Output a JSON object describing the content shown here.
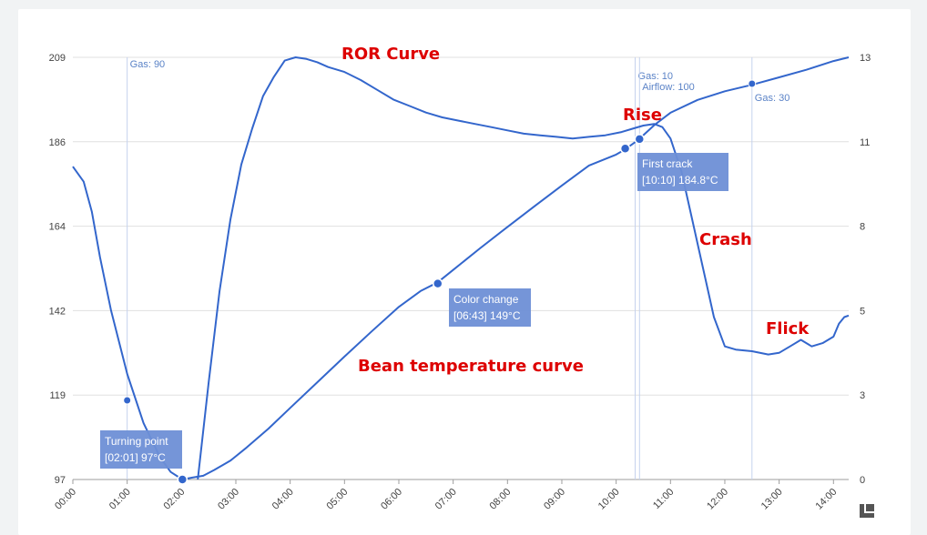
{
  "chart_data": {
    "type": "line",
    "x_tick_labels": [
      "00:00",
      "01:00",
      "02:00",
      "03:00",
      "04:00",
      "05:00",
      "06:00",
      "07:00",
      "08:00",
      "09:00",
      "10:00",
      "11:00",
      "12:00",
      "13:00",
      "14:00"
    ],
    "xlim_minutes": [
      0,
      14.28
    ],
    "y_left_ticks": [
      "209",
      "186",
      "164",
      "142",
      "119",
      "97"
    ],
    "ylim_left": [
      97,
      209
    ],
    "y_right_ticks": [
      "13",
      "11",
      "8",
      "5",
      "3",
      "0"
    ],
    "ylim_right": [
      0,
      13
    ],
    "series": [
      {
        "name": "Bean temperature curve",
        "axis": "left",
        "color": "#3366cc",
        "x": [
          0,
          0.2,
          0.35,
          0.5,
          0.7,
          1.0,
          1.3,
          1.6,
          1.8,
          2.0167,
          2.2,
          2.4,
          2.6,
          2.9,
          3.2,
          3.6,
          4.0,
          4.5,
          5.0,
          5.5,
          6.0,
          6.4,
          6.7167,
          7.0,
          7.5,
          8.0,
          8.5,
          9.0,
          9.5,
          10.0,
          10.1667,
          10.4,
          10.7,
          11.0,
          11.5,
          12.0,
          12.5,
          13.0,
          13.5,
          14.0,
          14.28
        ],
        "y": [
          180,
          176,
          168,
          156,
          142,
          125,
          112,
          103,
          99,
          97,
          97.5,
          98,
          99.5,
          102,
          105.5,
          110.5,
          116,
          122.8,
          129.6,
          136.3,
          142.8,
          147,
          149.3,
          152.6,
          158.4,
          164,
          169.5,
          175,
          180.3,
          183.2,
          184.6,
          187,
          191,
          194.3,
          197.7,
          200,
          201.7,
          203.7,
          205.7,
          208,
          209
        ]
      },
      {
        "name": "ROR Curve",
        "axis": "right",
        "color": "#3366cc",
        "x": [
          2.3,
          2.5,
          2.7,
          2.9,
          3.1,
          3.3,
          3.5,
          3.7,
          3.9,
          4.1,
          4.3,
          4.5,
          4.7,
          5.0,
          5.3,
          5.6,
          5.9,
          6.2,
          6.5,
          6.8,
          7.1,
          7.4,
          7.7,
          8.0,
          8.3,
          8.6,
          8.9,
          9.2,
          9.5,
          9.8,
          10.1,
          10.3,
          10.5,
          10.7,
          10.85,
          11.0,
          11.2,
          11.4,
          11.6,
          11.8,
          12.0,
          12.2,
          12.5,
          12.8,
          13.0,
          13.2,
          13.4,
          13.6,
          13.8,
          14.0,
          14.1,
          14.2,
          14.28
        ],
        "y": [
          0,
          3,
          5.8,
          8,
          9.7,
          10.8,
          11.8,
          12.4,
          12.9,
          13.0,
          12.95,
          12.85,
          12.7,
          12.55,
          12.3,
          12.0,
          11.7,
          11.5,
          11.3,
          11.15,
          11.05,
          10.95,
          10.85,
          10.75,
          10.65,
          10.6,
          10.55,
          10.5,
          10.55,
          10.6,
          10.7,
          10.8,
          10.9,
          10.95,
          10.85,
          10.5,
          9.5,
          8.0,
          6.5,
          5.0,
          4.1,
          4.0,
          3.95,
          3.85,
          3.9,
          4.1,
          4.3,
          4.1,
          4.2,
          4.4,
          4.8,
          5.0,
          5.05
        ]
      }
    ],
    "markers": [
      {
        "name": "turning-point",
        "x": 2.0167,
        "y": 97,
        "axis": "left"
      },
      {
        "name": "color-change",
        "x": 6.7167,
        "y": 149,
        "axis": "left"
      },
      {
        "name": "first-crack",
        "x": 10.1667,
        "y": 184.8,
        "axis": "left"
      },
      {
        "name": "first-crack-2",
        "x": 10.43,
        "y": 187.3,
        "axis": "left"
      },
      {
        "name": "gas-90-point",
        "x": 1.0,
        "y": 118,
        "axis": "left"
      },
      {
        "name": "gas-30-point",
        "x": 12.5,
        "y": 202,
        "axis": "left"
      }
    ],
    "event_lines": [
      {
        "name": "gas-90",
        "x": 1.0,
        "label": "Gas: 90",
        "label_pos": "top-right"
      },
      {
        "name": "gas-10",
        "x": 10.35,
        "label": "Gas: 10",
        "label_pos": "top-right"
      },
      {
        "name": "airflow-100",
        "x": 10.43,
        "label": "Airflow: 100",
        "label_pos": "top-right"
      },
      {
        "name": "gas-30",
        "x": 12.5,
        "label": "Gas: 30",
        "label_pos": "below-right"
      }
    ],
    "callouts": [
      {
        "name": "turning-point",
        "title": "Turning point",
        "detail": "[02:01] 97°C"
      },
      {
        "name": "color-change",
        "title": "Color change",
        "detail": "[06:43] 149°C"
      },
      {
        "name": "first-crack",
        "title": "First crack",
        "detail": "[10:10] 184.8°C"
      }
    ],
    "overlay_labels": [
      "ROR Curve",
      "Rise",
      "Crash",
      "Flick",
      "Bean temperature curve"
    ]
  }
}
